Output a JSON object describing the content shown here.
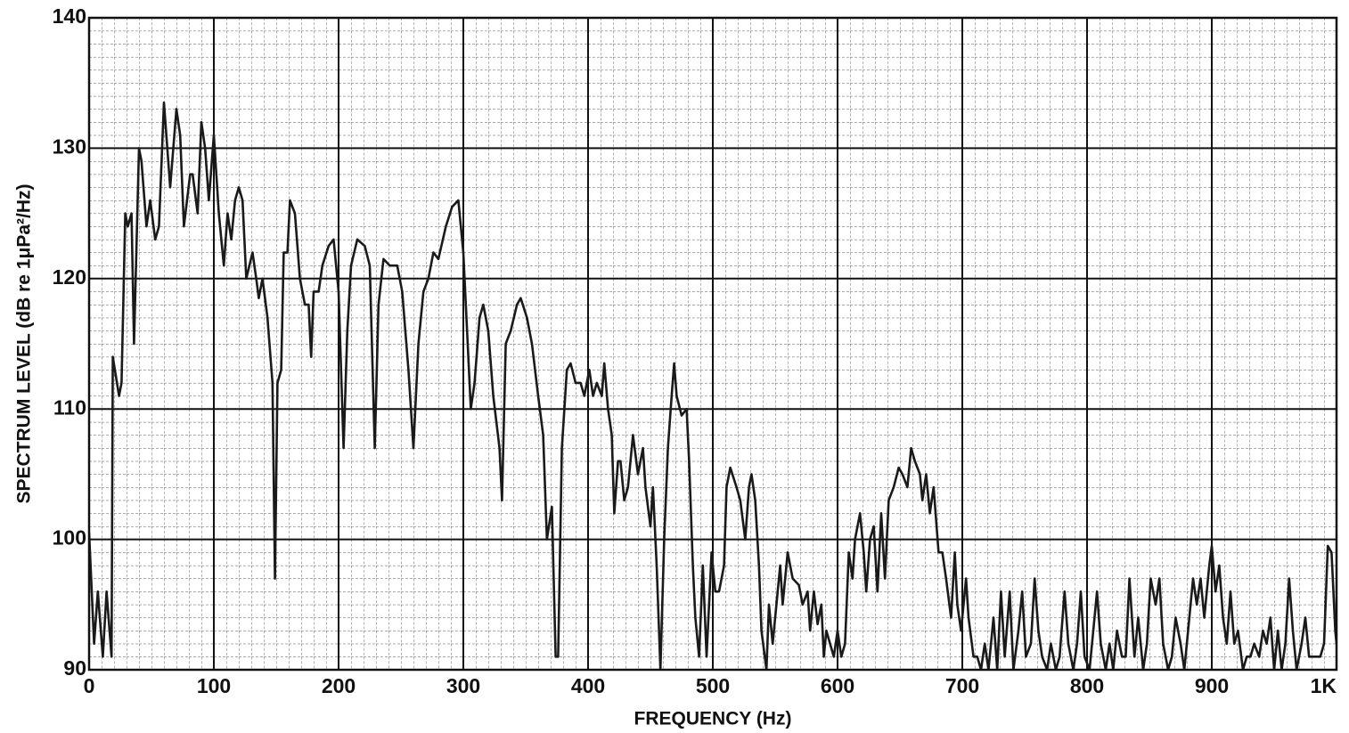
{
  "chart_data": {
    "type": "line",
    "color": "#1a1a1a",
    "grid": true,
    "x_label": "FREQUENCY (Hz)",
    "y_label": "SPECTRUM LEVEL (dB re 1μPa²/Hz)",
    "xlim": [
      0,
      1000
    ],
    "ylim": [
      90,
      140
    ],
    "xticks": [
      0,
      100,
      200,
      300,
      400,
      500,
      600,
      700,
      800,
      900,
      {
        "value": 1000,
        "label": "1K"
      }
    ],
    "yticks": [
      90,
      100,
      110,
      120,
      130,
      140
    ],
    "x": [
      0,
      4,
      7,
      11,
      14,
      18,
      19,
      24,
      26,
      29,
      31,
      34,
      36,
      40,
      42,
      46,
      49,
      53,
      56,
      60,
      65,
      70,
      73,
      76,
      81,
      83,
      87,
      90,
      93,
      96,
      100,
      104,
      108,
      111,
      114,
      117,
      120,
      123,
      126,
      131,
      134,
      136,
      139,
      143,
      147,
      149,
      151,
      154,
      156,
      159,
      161,
      165,
      169,
      173,
      176,
      178,
      180,
      184,
      187,
      192,
      196,
      200,
      204,
      207,
      210,
      215,
      221,
      225,
      229,
      232,
      236,
      241,
      247,
      251,
      256,
      260,
      264,
      268,
      272,
      276,
      280,
      286,
      291,
      296,
      300,
      306,
      309,
      313,
      316,
      320,
      324,
      329,
      331,
      334,
      338,
      343,
      346,
      351,
      355,
      360,
      364,
      367,
      371,
      374,
      376,
      379,
      383,
      386,
      390,
      394,
      397,
      401,
      404,
      407,
      411,
      413,
      416,
      419,
      421,
      424,
      426,
      429,
      432,
      436,
      440,
      444,
      446,
      450,
      452,
      455,
      458,
      461,
      464,
      467,
      469,
      471,
      475,
      479,
      481,
      484,
      486,
      489,
      492,
      495,
      497,
      499,
      502,
      505,
      509,
      511,
      514,
      519,
      522,
      526,
      529,
      531,
      534,
      537,
      539,
      543,
      545,
      548,
      554,
      556,
      560,
      564,
      569,
      572,
      576,
      578,
      581,
      584,
      587,
      589,
      591,
      594,
      597,
      600,
      603,
      606,
      609,
      612,
      614,
      618,
      621,
      623,
      626,
      629,
      632,
      635,
      638,
      641,
      645,
      649,
      652,
      656,
      659,
      662,
      666,
      668,
      671,
      674,
      677,
      681,
      684,
      687,
      691,
      694,
      696,
      699,
      703,
      705,
      709,
      712,
      715,
      718,
      721,
      725,
      728,
      731,
      734,
      738,
      741,
      745,
      748,
      751,
      755,
      758,
      761,
      764,
      768,
      771,
      775,
      778,
      782,
      785,
      789,
      792,
      795,
      798,
      802,
      805,
      808,
      811,
      815,
      818,
      821,
      824,
      828,
      831,
      834,
      838,
      841,
      845,
      848,
      851,
      855,
      858,
      861,
      865,
      868,
      871,
      875,
      878,
      881,
      885,
      888,
      891,
      894,
      898,
      900,
      903,
      906,
      909,
      912,
      915,
      918,
      921,
      925,
      928,
      931,
      934,
      938,
      941,
      944,
      947,
      950,
      953,
      956,
      959,
      962,
      965,
      968,
      972,
      975,
      978,
      981,
      984,
      987,
      990,
      993,
      996,
      999,
      1000
    ],
    "values": [
      100.5,
      92,
      96,
      91,
      96,
      91,
      114,
      111,
      112,
      125,
      124,
      125,
      115,
      130,
      129,
      124,
      126,
      123,
      124,
      133.5,
      127,
      133,
      131,
      124,
      128,
      128,
      125,
      132,
      130,
      126,
      131,
      125,
      121,
      125,
      123,
      126,
      127,
      126,
      120,
      122,
      120,
      118.5,
      120,
      117,
      112,
      97,
      112,
      113,
      122,
      122,
      126,
      125,
      120,
      118,
      118,
      114,
      119,
      119,
      121,
      122.5,
      123,
      119,
      107,
      116,
      121,
      123,
      122.5,
      121,
      107,
      118,
      121.5,
      121,
      121,
      119,
      113,
      107,
      115,
      119,
      120,
      122,
      121.5,
      124,
      125.5,
      126,
      122,
      110,
      112,
      117,
      118,
      116,
      111,
      107,
      103,
      115,
      116,
      118,
      118.5,
      117,
      115,
      111,
      108,
      100,
      102.5,
      91,
      91,
      107,
      113,
      113.5,
      112,
      112,
      111,
      113,
      111,
      112,
      111,
      113.5,
      110,
      108,
      102,
      106,
      106,
      103,
      104,
      108,
      105,
      107,
      104,
      101,
      104,
      98,
      90,
      100,
      107,
      111,
      113.5,
      111,
      109.5,
      110,
      106,
      98,
      94,
      91,
      98,
      91,
      95,
      99,
      96,
      96,
      98,
      104,
      105.5,
      104,
      103,
      100,
      104,
      105,
      103,
      98,
      93,
      90,
      95,
      92,
      98,
      95,
      99,
      97,
      96.5,
      95,
      96,
      93,
      96,
      93.5,
      95,
      91,
      93,
      92,
      91,
      93,
      91,
      92,
      99,
      97,
      100,
      102,
      99,
      96,
      100,
      101,
      96,
      102,
      97,
      103,
      104,
      105.5,
      105,
      104,
      107,
      106,
      105,
      103,
      105,
      102,
      104,
      99,
      99,
      97,
      94,
      99,
      95,
      93,
      97,
      94,
      91,
      91,
      90,
      92,
      90,
      94,
      90,
      96,
      91,
      96,
      90,
      93,
      96,
      91,
      92,
      97,
      93,
      91,
      90,
      92,
      90,
      91,
      96,
      92,
      90,
      92,
      96,
      91,
      90,
      93,
      96,
      92,
      90,
      92,
      90,
      93,
      91,
      91,
      97,
      91,
      94,
      90,
      92,
      97,
      95,
      97,
      92,
      90,
      91,
      94,
      92,
      90,
      93,
      97,
      95,
      97,
      94,
      98,
      99.5,
      96,
      98,
      94,
      92,
      96,
      92,
      93,
      90,
      91,
      91,
      92,
      91,
      93,
      92,
      94,
      90,
      93,
      90,
      92,
      97,
      93,
      90,
      92,
      94,
      91,
      91,
      91,
      91,
      92,
      99.5,
      99,
      93,
      92
    ]
  }
}
